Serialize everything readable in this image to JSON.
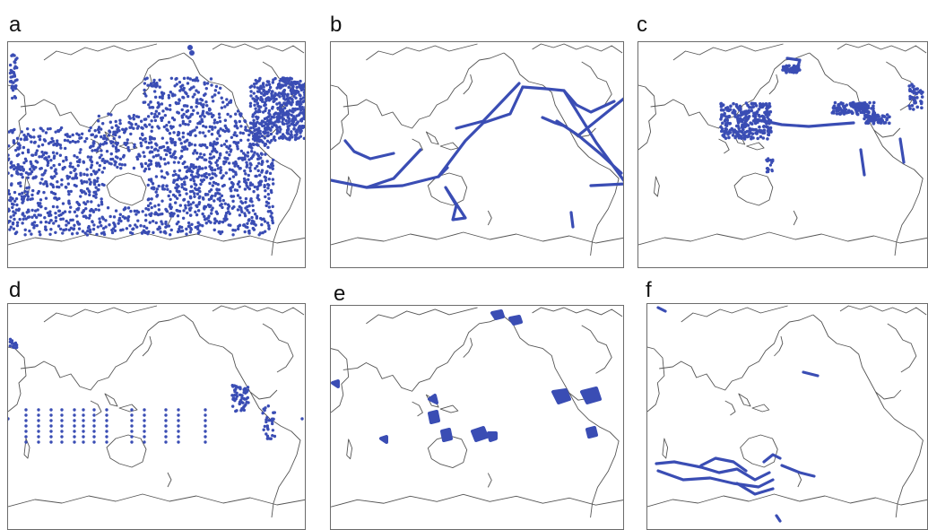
{
  "figure": {
    "panels": [
      {
        "letter": "a",
        "pattern": "dense-global"
      },
      {
        "letter": "b",
        "pattern": "ship-tracks"
      },
      {
        "letter": "c",
        "pattern": "coastal-clusters"
      },
      {
        "letter": "d",
        "pattern": "equatorial-moorings"
      },
      {
        "letter": "e",
        "pattern": "sparse-patches"
      },
      {
        "letter": "f",
        "pattern": "southern-ocean-tracks"
      }
    ]
  },
  "colors": {
    "observations": "#3a4db4",
    "coastline": "#555555",
    "frame": "#6b6b6b"
  }
}
